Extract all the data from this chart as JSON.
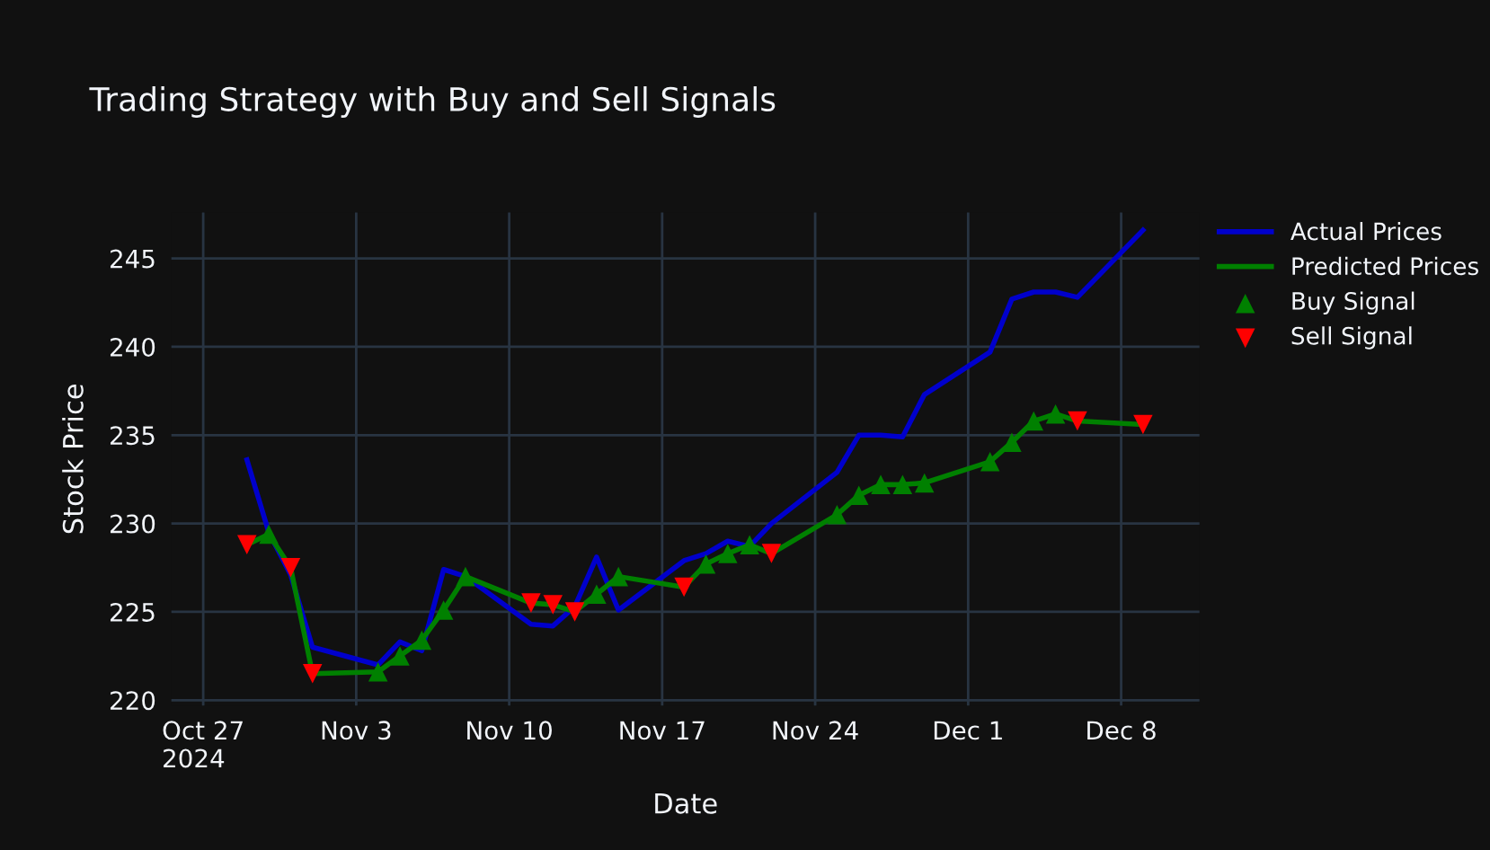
{
  "chart_data": {
    "type": "line",
    "title": "Trading Strategy with Buy and Sell Signals",
    "xlabel": "Date",
    "ylabel": "Stock Price",
    "xlim": [
      "2024-10-25T13:00",
      "2024-12-11T14:00"
    ],
    "ylim": [
      219.7,
      247.6
    ],
    "xticks": [
      {
        "value": "2024-10-27",
        "label": "Oct 27\n2024"
      },
      {
        "value": "2024-11-03",
        "label": "Nov 3"
      },
      {
        "value": "2024-11-10",
        "label": "Nov 10"
      },
      {
        "value": "2024-11-17",
        "label": "Nov 17"
      },
      {
        "value": "2024-11-24",
        "label": "Nov 24"
      },
      {
        "value": "2024-12-01",
        "label": "Dec 1"
      },
      {
        "value": "2024-12-08",
        "label": "Dec 8"
      }
    ],
    "yticks": [
      220,
      225,
      230,
      235,
      240,
      245
    ],
    "grid": true,
    "legend": "top right",
    "series": [
      {
        "name": "Actual Prices",
        "color": "#0000cc",
        "x": [
          "2024-10-29",
          "2024-10-30",
          "2024-10-31",
          "2024-11-01",
          "2024-11-04",
          "2024-11-05",
          "2024-11-06",
          "2024-11-07",
          "2024-11-08",
          "2024-11-11",
          "2024-11-12",
          "2024-11-13",
          "2024-11-14",
          "2024-11-15",
          "2024-11-18",
          "2024-11-19",
          "2024-11-20",
          "2024-11-21",
          "2024-11-22",
          "2024-11-25",
          "2024-11-26",
          "2024-11-27",
          "2024-11-28",
          "2024-11-29",
          "2024-12-02",
          "2024-12-03",
          "2024-12-04",
          "2024-12-05",
          "2024-12-06",
          "2024-12-09"
        ],
        "values": [
          233.6,
          229.5,
          227.1,
          223.0,
          222.0,
          223.3,
          222.8,
          227.4,
          227.0,
          224.3,
          224.2,
          225.3,
          228.1,
          225.1,
          227.9,
          228.3,
          229.0,
          228.7,
          230.0,
          232.9,
          235.0,
          235.0,
          234.9,
          237.3,
          239.7,
          242.7,
          243.1,
          243.1,
          242.8,
          246.6
        ]
      },
      {
        "name": "Predicted Prices",
        "color": "#008000",
        "x": [
          "2024-10-29",
          "2024-10-30",
          "2024-10-31",
          "2024-11-01",
          "2024-11-04",
          "2024-11-05",
          "2024-11-06",
          "2024-11-07",
          "2024-11-08",
          "2024-11-11",
          "2024-11-12",
          "2024-11-13",
          "2024-11-14",
          "2024-11-15",
          "2024-11-18",
          "2024-11-19",
          "2024-11-20",
          "2024-11-21",
          "2024-11-22",
          "2024-11-25",
          "2024-11-26",
          "2024-11-27",
          "2024-11-28",
          "2024-11-29",
          "2024-12-02",
          "2024-12-03",
          "2024-12-04",
          "2024-12-05",
          "2024-12-06",
          "2024-12-09"
        ],
        "values": [
          228.8,
          229.4,
          227.5,
          221.5,
          221.6,
          222.5,
          223.4,
          225.1,
          227.0,
          225.5,
          225.4,
          225.0,
          226.0,
          227.0,
          226.4,
          227.7,
          228.3,
          228.8,
          228.3,
          230.5,
          231.6,
          232.2,
          232.2,
          232.3,
          233.5,
          234.6,
          235.8,
          236.2,
          235.8,
          235.6
        ]
      },
      {
        "name": "Buy Signal",
        "type": "scatter",
        "marker": "triangle",
        "color": "#008000",
        "x": [
          "2024-10-30",
          "2024-11-04",
          "2024-11-05",
          "2024-11-06",
          "2024-11-07",
          "2024-11-08",
          "2024-11-14",
          "2024-11-15",
          "2024-11-19",
          "2024-11-20",
          "2024-11-21",
          "2024-11-25",
          "2024-11-26",
          "2024-11-27",
          "2024-11-28",
          "2024-11-29",
          "2024-12-02",
          "2024-12-03",
          "2024-12-04",
          "2024-12-05"
        ],
        "values": [
          229.4,
          221.6,
          222.5,
          223.4,
          225.1,
          227.0,
          226.0,
          227.0,
          227.7,
          228.3,
          228.8,
          230.5,
          231.6,
          232.2,
          232.2,
          232.3,
          233.5,
          234.6,
          235.8,
          236.2
        ]
      },
      {
        "name": "Sell Signal",
        "type": "scatter",
        "marker": "triangle-down",
        "color": "#ff0000",
        "x": [
          "2024-10-29",
          "2024-10-31",
          "2024-11-01",
          "2024-11-11",
          "2024-11-12",
          "2024-11-13",
          "2024-11-18",
          "2024-11-22",
          "2024-12-06",
          "2024-12-09"
        ],
        "values": [
          228.8,
          227.5,
          221.5,
          225.5,
          225.4,
          225.0,
          226.4,
          228.3,
          235.8,
          235.6
        ]
      }
    ]
  }
}
